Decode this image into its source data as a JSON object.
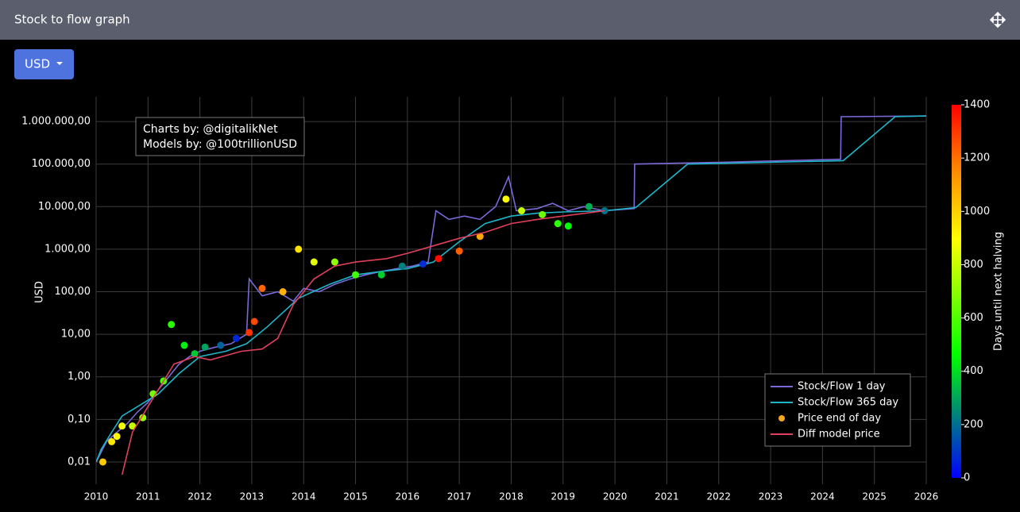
{
  "header": {
    "title": "Stock to flow graph"
  },
  "currency_button": "USD",
  "chart_data": {
    "type": "line",
    "annotation": [
      "Charts by: @digitalikNet",
      "Models by: @100trillionUSD"
    ],
    "y_label": "USD",
    "log_y": true,
    "grid": true,
    "legend": "bottom-right",
    "xlim": [
      2010,
      2026
    ],
    "xticks": [
      2010,
      2011,
      2012,
      2013,
      2014,
      2015,
      2016,
      2017,
      2018,
      2019,
      2020,
      2021,
      2022,
      2023,
      2024,
      2025,
      2026
    ],
    "ylim": [
      0.003,
      3800000
    ],
    "yticks": [
      {
        "value": 0.01,
        "label": "0,01"
      },
      {
        "value": 0.1,
        "label": "0,10"
      },
      {
        "value": 1,
        "label": "1,00"
      },
      {
        "value": 10,
        "label": "10,00"
      },
      {
        "value": 100,
        "label": "100,00"
      },
      {
        "value": 1000,
        "label": "1.000,00"
      },
      {
        "value": 10000,
        "label": "10.000,00"
      },
      {
        "value": 100000,
        "label": "100.000,00"
      },
      {
        "value": 1000000,
        "label": "1.000.000,00"
      }
    ],
    "colorbar": {
      "title": "Days until next halving",
      "clim": [
        0,
        1400
      ],
      "ticks": [
        0,
        200,
        400,
        600,
        800,
        1000,
        1200,
        1400
      ],
      "colorscale": [
        [
          0,
          "#0000ff"
        ],
        [
          0.33,
          "#00ff00"
        ],
        [
          0.64,
          "#ffff00"
        ],
        [
          0.82,
          "#ff8c00"
        ],
        [
          1,
          "#ff0000"
        ]
      ]
    },
    "series": [
      {
        "name": "Stock/Flow 1 day",
        "type": "line",
        "color": "#7b68d9",
        "x": [
          2010.0,
          2010.2,
          2010.4,
          2010.6,
          2010.8,
          2011.0,
          2011.2,
          2011.4,
          2011.6,
          2011.8,
          2012.0,
          2012.3,
          2012.6,
          2012.9,
          2012.95,
          2013.2,
          2013.5,
          2013.8,
          2014.0,
          2014.3,
          2014.6,
          2014.9,
          2015.2,
          2015.5,
          2015.8,
          2016.1,
          2016.4,
          2016.55,
          2016.8,
          2017.1,
          2017.4,
          2017.7,
          2017.95,
          2018.1,
          2018.5,
          2018.8,
          2019.1,
          2019.4,
          2019.8,
          2020.37,
          2020.38,
          2022,
          2024.35,
          2024.36,
          2026
        ],
        "values": [
          0.01,
          0.03,
          0.05,
          0.08,
          0.15,
          0.25,
          0.5,
          1.0,
          2.0,
          3.0,
          4.0,
          5.0,
          6.0,
          10,
          200,
          80,
          100,
          60,
          120,
          100,
          150,
          200,
          250,
          300,
          350,
          400,
          500,
          8000,
          5000,
          6000,
          5000,
          10000,
          50000,
          8000,
          9000,
          12000,
          8000,
          10000,
          8000,
          9000,
          100000,
          110000,
          130000,
          1300000,
          1350000
        ]
      },
      {
        "name": "Stock/Flow 365 day",
        "type": "line",
        "color": "#1fb5c9",
        "x": [
          2010.0,
          2010.1,
          2010.3,
          2010.5,
          2010.8,
          2011.2,
          2011.6,
          2012.0,
          2012.5,
          2012.9,
          2013.3,
          2013.9,
          2014.5,
          2015.0,
          2015.5,
          2016.0,
          2016.5,
          2017.0,
          2017.5,
          2018.0,
          2018.5,
          2019.0,
          2019.8,
          2020.4,
          2021.4,
          2024.4,
          2025.4,
          2026
        ],
        "values": [
          0.01,
          0.02,
          0.05,
          0.12,
          0.2,
          0.4,
          1.2,
          3,
          4,
          6,
          15,
          70,
          150,
          250,
          300,
          350,
          500,
          1500,
          4000,
          6000,
          7000,
          7500,
          8000,
          9500,
          100000,
          120000,
          1300000,
          1350000
        ]
      },
      {
        "name": "Price end of day",
        "type": "scatter",
        "color": "#f5a623",
        "x": [
          2010.13,
          2010.3,
          2010.4,
          2010.5,
          2010.7,
          2010.9,
          2011.1,
          2011.3,
          2011.45,
          2011.7,
          2011.9,
          2012.1,
          2012.4,
          2012.7,
          2012.95,
          2013.05,
          2013.2,
          2013.6,
          2013.9,
          2014.2,
          2014.6,
          2015.0,
          2015.5,
          2015.9,
          2016.3,
          2016.6,
          2017.0,
          2017.4,
          2017.9,
          2018.2,
          2018.6,
          2018.9,
          2019.1,
          2019.5,
          2019.8
        ],
        "values": [
          0.01,
          0.03,
          0.04,
          0.07,
          0.07,
          0.11,
          0.4,
          0.8,
          17,
          5.5,
          3.5,
          5,
          5.5,
          8,
          11,
          20,
          120,
          100,
          1000,
          500,
          500,
          250,
          250,
          400,
          450,
          600,
          900,
          2000,
          15000,
          8000,
          6500,
          4000,
          3500,
          10000,
          8000
        ],
        "color_values": [
          1011,
          949,
          912,
          876,
          803,
          730,
          657,
          584,
          529,
          438,
          365,
          292,
          182,
          73,
          1310,
          1270,
          1216,
          1070,
          960,
          850,
          708,
          566,
          376,
          230,
          84,
          1380,
          1230,
          1086,
          902,
          792,
          646,
          536,
          462,
          317,
          208
        ]
      },
      {
        "name": "Diff model price",
        "type": "line",
        "color": "#e0405a",
        "x": [
          2010.5,
          2010.7,
          2011.0,
          2011.5,
          2011.9,
          2012.2,
          2012.8,
          2013.2,
          2013.5,
          2013.8,
          2014.2,
          2014.6,
          2015.0,
          2015.6,
          2016.0,
          2016.5,
          2017.0,
          2017.5,
          2018.0,
          2018.5,
          2019.0,
          2019.8
        ],
        "values": [
          0.005,
          0.05,
          0.2,
          2.0,
          3,
          2.5,
          4,
          4.5,
          8,
          50,
          200,
          400,
          500,
          600,
          800,
          1200,
          1800,
          2500,
          4000,
          5000,
          6000,
          8000
        ]
      }
    ]
  }
}
